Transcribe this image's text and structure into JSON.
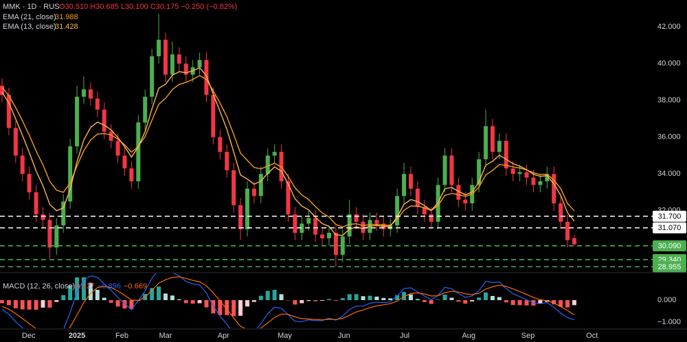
{
  "chart_data": [
    {
      "type": "candlestick",
      "symbol": "MMK · 1D · RUS",
      "ohlc": "O30.510 H30.685 L30.100 C30.175 −0.250 (−0.82%)",
      "up_color": "#4caf50",
      "down_color": "#f23645",
      "open": [
        38.8,
        38.3,
        36.5,
        35,
        34,
        33,
        31.8,
        31.5,
        30,
        31.2,
        32.5,
        35.5,
        38.2,
        38.6,
        38.1,
        37.5,
        36.3,
        35.8,
        35,
        34.3,
        33.6,
        36.8,
        38.2,
        40.4,
        41.3,
        39.4,
        40.5,
        40,
        39.4,
        39.8,
        40.2,
        38.3,
        36,
        35.2,
        34.2,
        32.3,
        31,
        33.2,
        32.8,
        34,
        35,
        35.2,
        33.6,
        31.8,
        30.8,
        31.3,
        31.6,
        30.7,
        30.5,
        30.8,
        29.6,
        30.6,
        31.8,
        31.4,
        30.8,
        31.5,
        31.3,
        31,
        31.2,
        32.8,
        34,
        33.2,
        32.2,
        31.8,
        31.4,
        33.4,
        35,
        33.4,
        32.6,
        32.4,
        33.4,
        34.8,
        36.6,
        35.2,
        35.8,
        34.3,
        34,
        34.1,
        33.8,
        33.4,
        33.6,
        34,
        32.4,
        31.4,
        30.51
      ],
      "high": [
        39.2,
        38.7,
        36.9,
        35.4,
        34.4,
        33.4,
        32.2,
        31.9,
        31.6,
        32.9,
        35.9,
        38.8,
        39.3,
        39.0,
        38.5,
        37.9,
        36.7,
        36.2,
        35.4,
        34.7,
        37.2,
        38.6,
        40.8,
        42.7,
        41.7,
        41.2,
        40.9,
        40.4,
        40.2,
        40.6,
        40.6,
        38.7,
        36.4,
        35.6,
        34.6,
        32.7,
        33.6,
        33.6,
        34.4,
        35.4,
        35.6,
        35.6,
        34.0,
        32.2,
        31.7,
        32.0,
        32.0,
        31.1,
        31.2,
        31.2,
        31.0,
        32.6,
        32.2,
        31.8,
        31.9,
        31.9,
        31.7,
        31.6,
        33.2,
        34.6,
        34.4,
        33.6,
        32.6,
        32.2,
        33.8,
        35.4,
        35.4,
        33.8,
        33.0,
        33.8,
        35.2,
        37.5,
        37.0,
        36.2,
        36.2,
        34.7,
        34.5,
        34.5,
        34.2,
        34.0,
        34.4,
        34.4,
        32.8,
        31.8,
        30.685
      ],
      "low": [
        37.9,
        36.1,
        34.6,
        33.6,
        32.6,
        31.4,
        31.1,
        29.4,
        29.6,
        30.8,
        32.1,
        35.1,
        37.8,
        37.7,
        37.1,
        35.9,
        35.4,
        34.6,
        33.9,
        33.2,
        33.2,
        36.4,
        37.8,
        40.0,
        39.0,
        39.0,
        39.6,
        39.0,
        39.0,
        39.4,
        37.9,
        35.6,
        34.8,
        33.8,
        31.9,
        30.4,
        30.6,
        32.4,
        32.4,
        33.6,
        34.6,
        33.2,
        31.4,
        30.4,
        30.4,
        30.9,
        30.3,
        30.1,
        30.1,
        28.95,
        29.2,
        30.2,
        31.0,
        30.4,
        30.4,
        30.9,
        30.6,
        30.6,
        30.8,
        32.4,
        32.8,
        31.8,
        31.4,
        31.0,
        31.0,
        33.0,
        33.0,
        32.2,
        32.0,
        32.0,
        33.0,
        34.4,
        34.8,
        34.8,
        33.9,
        33.6,
        33.6,
        33.4,
        33.0,
        33.0,
        33.2,
        32.0,
        31.0,
        30.0,
        30.1
      ],
      "close": [
        38.3,
        36.5,
        35,
        34,
        33,
        31.8,
        31.5,
        30,
        31.2,
        32.5,
        35.5,
        38.2,
        38.6,
        38.1,
        37.5,
        36.3,
        35.8,
        35,
        34.3,
        33.6,
        36.8,
        38.2,
        40.4,
        41.3,
        39.4,
        40.5,
        40,
        39.4,
        39.8,
        40.2,
        38.3,
        36,
        35.2,
        34.2,
        32.3,
        31,
        33.2,
        32.8,
        34,
        35,
        35.2,
        33.6,
        31.8,
        30.8,
        31.3,
        31.6,
        30.7,
        30.5,
        30.8,
        29.6,
        30.6,
        31.8,
        31.4,
        30.8,
        31.5,
        31.3,
        31,
        31.2,
        32.8,
        34,
        33.2,
        32.2,
        31.8,
        31.4,
        33.4,
        35,
        33.4,
        32.6,
        32.4,
        33.4,
        34.8,
        36.6,
        35.2,
        35.8,
        34.3,
        34,
        34.1,
        33.8,
        33.4,
        33.6,
        34,
        32.4,
        31.4,
        30.4,
        30.175
      ],
      "lines": [
        {
          "name": "EMA (21, close)",
          "legend_value": "31.988",
          "color": "#f59e1b",
          "values": [
            38.7,
            38.26,
            37.61,
            36.89,
            36.11,
            35.25,
            34.5,
            33.6,
            33.12,
            33.0,
            33.5,
            34.44,
            35.27,
            35.84,
            36.17,
            36.2,
            36.12,
            35.9,
            35.58,
            35.18,
            35.5,
            36.04,
            36.91,
            37.79,
            38.11,
            38.59,
            38.87,
            38.98,
            39.14,
            39.35,
            39.14,
            38.51,
            37.85,
            37.12,
            36.16,
            35.13,
            34.74,
            34.35,
            34.28,
            34.42,
            34.58,
            34.38,
            33.86,
            33.25,
            32.86,
            32.61,
            32.23,
            31.88,
            31.66,
            31.25,
            31.12,
            31.26,
            31.29,
            31.19,
            31.25,
            31.26,
            31.21,
            31.21,
            31.53,
            32.02,
            32.26,
            32.25,
            32.16,
            32.01,
            32.29,
            32.83,
            32.94,
            32.87,
            32.78,
            32.9,
            33.28,
            33.94,
            34.19,
            34.51,
            34.47,
            34.38,
            34.32,
            34.22,
            34.06,
            33.97,
            33.98,
            33.66,
            33.21,
            32.4,
            31.988
          ]
        },
        {
          "name": "EMA (13, close)",
          "legend_value": "31.428",
          "color": "#ffb74d",
          "values": [
            38.44,
            37.86,
            37.0,
            36.1,
            35.17,
            34.16,
            33.36,
            32.35,
            32.0,
            32.15,
            33.15,
            34.67,
            35.85,
            36.53,
            36.82,
            36.66,
            36.4,
            35.98,
            35.48,
            34.92,
            35.48,
            36.3,
            37.53,
            38.66,
            38.88,
            39.37,
            39.56,
            39.51,
            39.6,
            39.78,
            39.34,
            38.34,
            37.4,
            36.44,
            35.2,
            33.94,
            33.72,
            33.44,
            33.61,
            34.03,
            34.38,
            34.15,
            33.45,
            32.65,
            32.25,
            32.05,
            31.65,
            31.3,
            31.15,
            30.68,
            30.66,
            31.0,
            31.12,
            31.02,
            31.16,
            31.2,
            31.14,
            31.16,
            31.65,
            32.35,
            32.61,
            32.49,
            32.28,
            32.02,
            32.43,
            33.2,
            33.26,
            33.06,
            32.86,
            33.02,
            33.55,
            34.47,
            34.69,
            35.02,
            34.8,
            34.56,
            34.42,
            34.23,
            33.98,
            33.87,
            33.91,
            33.46,
            32.84,
            31.9,
            31.428
          ]
        }
      ],
      "levels": [
        {
          "value": 31.7,
          "label": "31.700",
          "color": "#ffffff",
          "label_color": "#000000"
        },
        {
          "value": 31.07,
          "label": "31.070",
          "color": "#ffffff",
          "label_color": "#000000"
        },
        {
          "value": 30.09,
          "label": "30.090",
          "color": "#4caf50",
          "label_color": "#ffffff"
        },
        {
          "value": 29.34,
          "label": "29.340",
          "color": "#4caf50",
          "label_color": "#ffffff"
        },
        {
          "value": 28.955,
          "label": "28.955",
          "color": "#4caf50",
          "label_color": "#ffffff"
        }
      ],
      "xlim": [
        -0.3,
        95.5
      ],
      "xticks": [
        {
          "value": 3.9,
          "label": "Dec"
        },
        {
          "value": 11,
          "label": "2025"
        },
        {
          "value": 17.6,
          "label": "Feb"
        },
        {
          "value": 24,
          "label": "Mar"
        },
        {
          "value": 32.5,
          "label": "Apr"
        },
        {
          "value": 41.5,
          "label": "May"
        },
        {
          "value": 50.2,
          "label": "Jun"
        },
        {
          "value": 59.1,
          "label": "Jul"
        },
        {
          "value": 68.5,
          "label": "Aug"
        },
        {
          "value": 77.2,
          "label": "Sep"
        },
        {
          "value": 86.6,
          "label": "Oct"
        }
      ],
      "ylim": [
        28.67,
        43.46
      ],
      "yticks": [
        {
          "value": 32,
          "label": "32.000"
        },
        {
          "value": 34,
          "label": "34.000"
        },
        {
          "value": 36,
          "label": "36.000"
        },
        {
          "value": 38,
          "label": "38.000"
        },
        {
          "value": 40,
          "label": "40.000"
        },
        {
          "value": 42,
          "label": "42.000"
        }
      ]
    },
    {
      "type": "macd",
      "title": "MACD (12, 26, close)",
      "value_labels": [
        "−0.227",
        "−0.896",
        "−0.669"
      ],
      "hist_color": "#f23645",
      "macd_color": "#2962ff",
      "signal_color": "#ff6d00",
      "histogram": [
        -0.14,
        -0.23,
        -0.37,
        -0.42,
        -0.43,
        -0.44,
        -0.34,
        -0.34,
        -0.08,
        0.23,
        0.67,
        1.04,
        1.04,
        0.79,
        0.47,
        0.11,
        -0.12,
        -0.29,
        -0.38,
        -0.42,
        -0.02,
        0.28,
        0.55,
        0.62,
        0.3,
        0.21,
        0.04,
        -0.14,
        -0.16,
        -0.14,
        -0.33,
        -0.6,
        -0.68,
        -0.68,
        -0.73,
        -0.71,
        -0.29,
        -0.08,
        0.2,
        0.42,
        0.47,
        0.27,
        -0.01,
        -0.2,
        -0.14,
        -0.04,
        -0.05,
        -0.03,
        0.05,
        -0.03,
        0.09,
        0.27,
        0.27,
        0.18,
        0.2,
        0.16,
        0.1,
        0.08,
        0.23,
        0.37,
        0.26,
        0.05,
        -0.09,
        -0.17,
        0.02,
        0.25,
        0.11,
        -0.07,
        -0.16,
        -0.06,
        0.12,
        0.35,
        0.19,
        0.14,
        -0.1,
        -0.22,
        -0.23,
        -0.24,
        -0.25,
        -0.14,
        -0.08,
        -0.19,
        -0.3,
        -0.33,
        -0.227
      ],
      "macd": [
        -0.42,
        -0.64,
        -0.98,
        -1.26,
        -1.5,
        -1.74,
        -1.82,
        -2.0,
        -1.79,
        -1.36,
        -0.56,
        0.37,
        0.93,
        1.1,
        1.04,
        0.74,
        0.45,
        0.13,
        -0.16,
        -0.42,
        -0.03,
        0.42,
        0.99,
        1.39,
        1.23,
        1.25,
        1.1,
        0.85,
        0.74,
        0.69,
        0.32,
        -0.27,
        -0.72,
        -1.09,
        -1.54,
        -1.9,
        -1.63,
        -1.46,
        -1.07,
        -0.62,
        -0.32,
        -0.37,
        -0.66,
        -0.96,
        -0.98,
        -0.9,
        -0.93,
        -0.93,
        -0.82,
        -0.91,
        -0.74,
        -0.42,
        -0.27,
        -0.27,
        -0.14,
        -0.1,
        -0.11,
        -0.08,
        0.19,
        0.53,
        0.56,
        0.38,
        0.19,
        0.02,
        0.22,
        0.59,
        0.51,
        0.3,
        0.13,
        0.19,
        0.43,
        0.85,
        0.8,
        0.82,
        0.53,
        0.29,
        0.16,
        0.02,
        -0.13,
        -0.16,
        -0.11,
        -0.32,
        -0.59,
        -0.8,
        -0.896
      ],
      "signal": [
        -0.28,
        -0.41,
        -0.61,
        -0.84,
        -1.07,
        -1.3,
        -1.48,
        -1.66,
        -1.71,
        -1.59,
        -1.23,
        -0.67,
        -0.11,
        0.31,
        0.57,
        0.63,
        0.57,
        0.42,
        0.22,
        0,
        -0.01,
        0.14,
        0.44,
        0.77,
        0.93,
        1.04,
        1.06,
        0.99,
        0.9,
        0.83,
        0.65,
        0.33,
        -0.04,
        -0.41,
        -0.81,
        -1.19,
        -1.34,
        -1.38,
        -1.27,
        -1.04,
        -0.79,
        -0.64,
        -0.65,
        -0.76,
        -0.84,
        -0.86,
        -0.88,
        -0.9,
        -0.87,
        -0.88,
        -0.83,
        -0.69,
        -0.54,
        -0.45,
        -0.34,
        -0.26,
        -0.21,
        -0.16,
        -0.04,
        0.16,
        0.3,
        0.33,
        0.28,
        0.19,
        0.2,
        0.34,
        0.4,
        0.37,
        0.29,
        0.25,
        0.31,
        0.5,
        0.61,
        0.68,
        0.63,
        0.51,
        0.39,
        0.26,
        0.12,
        0.02,
        -0.03,
        -0.13,
        -0.29,
        -0.47,
        -0.669
      ],
      "ylim": [
        -1.28,
        1.22
      ],
      "yticks": [
        {
          "value": 0,
          "label": "0.000"
        },
        {
          "value": -1,
          "label": "−1.000"
        }
      ]
    }
  ]
}
